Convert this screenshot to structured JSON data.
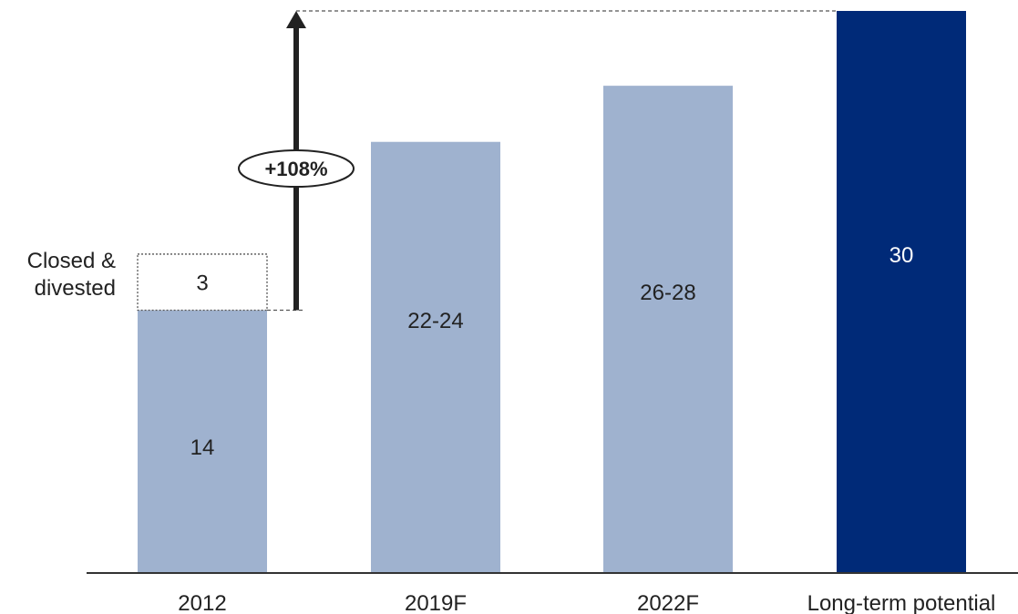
{
  "chart_data": {
    "type": "bar",
    "categories": [
      "2012",
      "2019F",
      "2022F",
      "Long-term potential"
    ],
    "values": [
      14,
      23,
      26,
      30
    ],
    "value_labels": [
      "14",
      "22-24",
      "26-28",
      "30"
    ],
    "highlight_index": 3,
    "stacked_segment": {
      "category": "2012",
      "base": 14,
      "value": 3,
      "label": "3",
      "side_label": "Closed & divested"
    },
    "growth_annotation": {
      "label": "+108%",
      "from_value": 14,
      "to_value": 30
    },
    "colors": {
      "bar": "#9fb2cf",
      "highlight_bar": "#002a78",
      "highlight_text": "#ffffff",
      "axis": "#333333",
      "arrow": "#222222",
      "dashed": "#555555"
    },
    "title": "",
    "xlabel": "",
    "ylabel": "",
    "ylim": [
      0,
      30
    ]
  }
}
